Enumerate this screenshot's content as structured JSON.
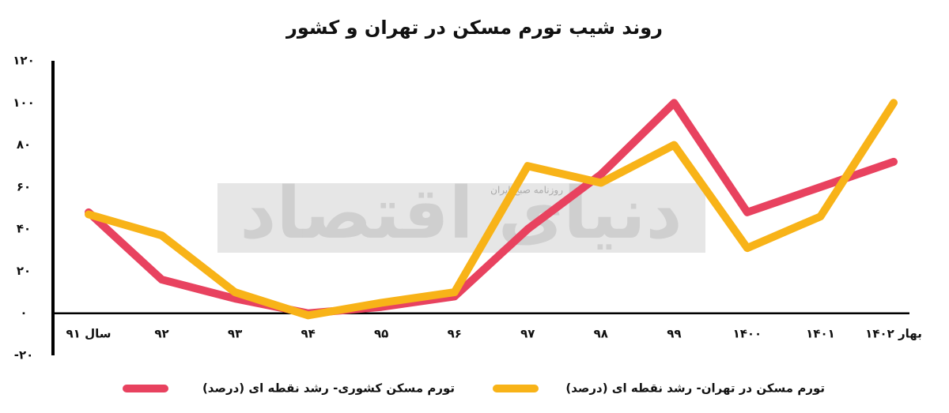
{
  "chart_data": {
    "type": "line",
    "title": "روند شیب تورم مسکن در تهران و کشور",
    "watermark": "دنیای اقتصاد",
    "watermark_subtitle": "روزنامه صبح ایران",
    "categories": [
      "سال ۹۱",
      "۹۲",
      "۹۳",
      "۹۴",
      "۹۵",
      "۹۶",
      "۹۷",
      "۹۸",
      "۹۹",
      "۱۴۰۰",
      "۱۴۰۱",
      "بهار ۱۴۰۲"
    ],
    "series": [
      {
        "name": "تورم مسکن کشوری- رشد نقطه ای (درصد)",
        "color": "#e8425f",
        "values": [
          48,
          16,
          7,
          0,
          3,
          8,
          40,
          66,
          100,
          48,
          60,
          72
        ]
      },
      {
        "name": "تورم مسکن در تهران- رشد نقطه ای (درصد)",
        "color": "#f8b318",
        "values": [
          47,
          37,
          10,
          -1,
          5,
          10,
          70,
          62,
          80,
          31,
          46,
          100
        ]
      }
    ],
    "ylim": [
      -20,
      120
    ],
    "yticks": [
      {
        "value": -20,
        "label": "-۲۰"
      },
      {
        "value": 0,
        "label": "۰"
      },
      {
        "value": 20,
        "label": "۲۰"
      },
      {
        "value": 40,
        "label": "۴۰"
      },
      {
        "value": 60,
        "label": "۶۰"
      },
      {
        "value": 80,
        "label": "۸۰"
      },
      {
        "value": 100,
        "label": "۱۰۰"
      },
      {
        "value": 120,
        "label": "۱۲۰"
      }
    ],
    "grid": false
  }
}
